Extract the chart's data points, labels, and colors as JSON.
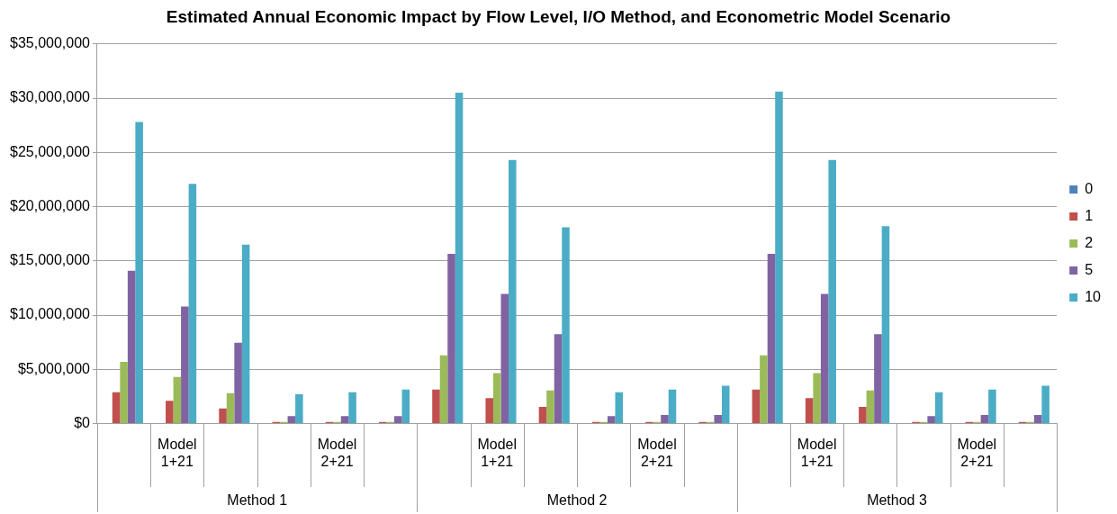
{
  "chart_data": {
    "type": "bar",
    "title": "Estimated Annual Economic Impact by Flow Level, I/O Method, and Econometric Model Scenario",
    "categories": [
      null,
      "Model 1+21",
      null,
      null,
      "Model 2+21",
      null,
      null,
      "Model 1+21",
      null,
      null,
      "Model 2+21",
      null,
      null,
      "Model 1+21",
      null,
      null,
      "Model 2+21",
      null
    ],
    "annotations": [
      "Method 1",
      "Method 2",
      "Method 3"
    ],
    "series": [
      {
        "name": "0",
        "color": "#4f81bd",
        "values": [
          0,
          0,
          0,
          0,
          0,
          0,
          0,
          0,
          0,
          0,
          0,
          0,
          0,
          0,
          0,
          0,
          0,
          0
        ]
      },
      {
        "name": "1",
        "color": "#c0504d",
        "values": [
          2900000,
          2100000,
          1400000,
          150000,
          150000,
          150000,
          3150000,
          2350000,
          1550000,
          150000,
          150000,
          150000,
          3150000,
          2350000,
          1550000,
          150000,
          150000,
          150000
        ]
      },
      {
        "name": "2",
        "color": "#9bbb59",
        "values": [
          5700000,
          4300000,
          2800000,
          150000,
          150000,
          150000,
          6300000,
          4650000,
          3050000,
          150000,
          150000,
          150000,
          6300000,
          4650000,
          3050000,
          150000,
          150000,
          150000
        ]
      },
      {
        "name": "5",
        "color": "#8064a2",
        "values": [
          14100000,
          10800000,
          7450000,
          700000,
          700000,
          700000,
          15650000,
          11950000,
          8250000,
          700000,
          800000,
          800000,
          15650000,
          11950000,
          8250000,
          700000,
          800000,
          800000
        ]
      },
      {
        "name": "10",
        "color": "#4bacc6",
        "values": [
          27800000,
          22100000,
          16500000,
          2700000,
          2900000,
          3150000,
          30500000,
          24300000,
          18100000,
          2900000,
          3150000,
          3500000,
          30600000,
          24300000,
          18200000,
          2900000,
          3150000,
          3500000
        ]
      }
    ],
    "ylim": [
      0,
      35000000
    ],
    "yticks": [
      {
        "value": 0,
        "label": "$0"
      },
      {
        "value": 5000000,
        "label": "$5,000,000"
      },
      {
        "value": 10000000,
        "label": "$10,000,000"
      },
      {
        "value": 15000000,
        "label": "$15,000,000"
      },
      {
        "value": 20000000,
        "label": "$20,000,000"
      },
      {
        "value": 25000000,
        "label": "$25,000,000"
      },
      {
        "value": 30000000,
        "label": "$30,000,000"
      },
      {
        "value": 35000000,
        "label": "$35,000,000"
      }
    ],
    "grid": "y",
    "legend": "right"
  }
}
